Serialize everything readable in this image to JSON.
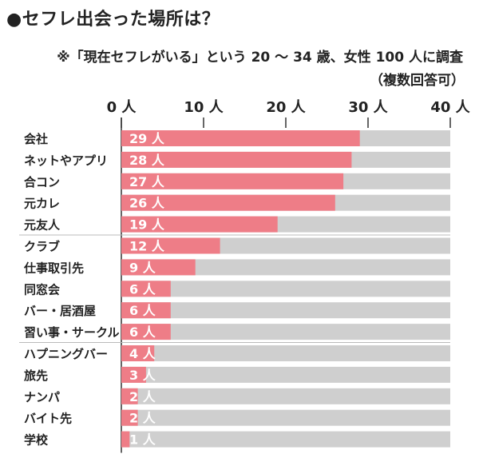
{
  "title": "●セフレ出会った場所は？",
  "subtitle": "※「現在セフレがいる」という 20 ～ 34 歳、女性 100 人に調査",
  "note": "（複数回答可）",
  "colors": {
    "bar": "#ee7d87",
    "track": "#cfcfcf",
    "label_text": "#ffffff",
    "axis": "#333333"
  },
  "chart_data": {
    "type": "bar",
    "orientation": "horizontal",
    "unit": "人",
    "xlim": [
      0,
      40
    ],
    "ticks": [
      "0 人",
      "10 人",
      "20 人",
      "30 人",
      "40 人"
    ],
    "tick_values": [
      0,
      10,
      20,
      30,
      40
    ],
    "categories": [
      "会社",
      "ネットやアプリ",
      "合コン",
      "元カレ",
      "元友人",
      "クラブ",
      "仕事取引先",
      "同窓会",
      "バー・居酒屋",
      "習い事・サークル",
      "ハプニングバー",
      "旅先",
      "ナンパ",
      "バイト先",
      "学校"
    ],
    "values": [
      29,
      28,
      27,
      26,
      19,
      12,
      9,
      6,
      6,
      6,
      4,
      3,
      2,
      2,
      1
    ],
    "data_labels": [
      "29 人",
      "28 人",
      "27 人",
      "26 人",
      "19 人",
      "12 人",
      "9 人",
      "6 人",
      "6 人",
      "6 人",
      "4 人",
      "3 人",
      "2 人",
      "2 人",
      "1 人"
    ],
    "group_separators_after": [
      4,
      9
    ]
  }
}
